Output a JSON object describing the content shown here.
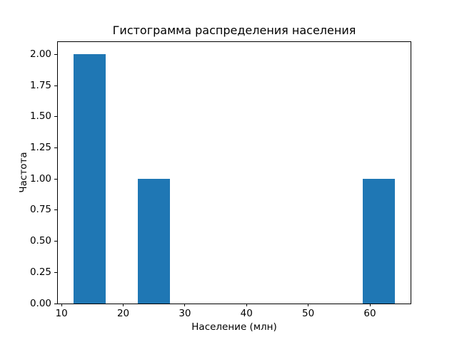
{
  "chart_data": {
    "type": "bar",
    "subtype": "histogram",
    "title": "Гистограмма распределения населения",
    "xlabel": "Население (млн)",
    "ylabel": "Частота",
    "xlim": [
      9.4,
      66.6
    ],
    "ylim": [
      0,
      2.1
    ],
    "xticks": [
      10,
      20,
      30,
      40,
      50,
      60
    ],
    "yticks": [
      "0.00",
      "0.25",
      "0.50",
      "0.75",
      "1.00",
      "1.25",
      "1.50",
      "1.75",
      "2.00"
    ],
    "bar_color": "#1f77b4",
    "grid": false,
    "legend": "none",
    "bars": [
      {
        "x0": 12.0,
        "x1": 17.2,
        "value": 2
      },
      {
        "x0": 22.4,
        "x1": 27.6,
        "value": 1
      },
      {
        "x0": 58.8,
        "x1": 64.0,
        "value": 1
      }
    ]
  }
}
